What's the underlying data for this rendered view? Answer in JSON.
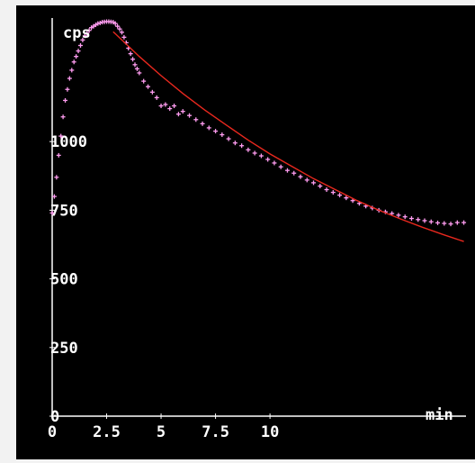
{
  "chart_data": {
    "type": "scatter",
    "title": "",
    "ylabel": "cps",
    "xlabel": "min",
    "xlim": [
      0,
      19
    ],
    "ylim": [
      0,
      1450
    ],
    "x_ticks": [
      "0",
      "2.5",
      "5",
      "7.5",
      "10"
    ],
    "x_tick_values": [
      0,
      2.5,
      5,
      7.5,
      10
    ],
    "y_ticks": [
      "0",
      "250",
      "500",
      "750",
      "1000"
    ],
    "y_tick_values": [
      0,
      250,
      500,
      750,
      1000
    ],
    "grid": false,
    "legend": "none",
    "series": [
      {
        "kind": "points",
        "color": "#ff9cf0",
        "x": [
          0.0,
          0.1,
          0.2,
          0.3,
          0.4,
          0.5,
          0.6,
          0.7,
          0.8,
          0.9,
          1.0,
          1.1,
          1.2,
          1.3,
          1.4,
          1.5,
          1.6,
          1.7,
          1.8,
          1.9,
          2.0,
          2.1,
          2.2,
          2.3,
          2.4,
          2.5,
          2.6,
          2.7,
          2.8,
          2.9,
          3.0,
          3.1,
          3.2,
          3.3,
          3.4,
          3.5,
          3.6,
          3.7,
          3.8,
          3.9,
          4.0,
          4.2,
          4.4,
          4.6,
          4.8,
          5.0,
          5.2,
          5.4,
          5.6,
          5.8,
          6.0,
          6.3,
          6.6,
          6.9,
          7.2,
          7.5,
          7.8,
          8.1,
          8.4,
          8.7,
          9.0,
          9.3,
          9.6,
          9.9,
          10.2,
          10.5,
          10.8,
          11.1,
          11.4,
          11.7,
          12.0,
          12.3,
          12.6,
          12.9,
          13.2,
          13.5,
          13.8,
          14.1,
          14.4,
          14.7,
          15.0,
          15.3,
          15.6,
          15.9,
          16.2,
          16.5,
          16.8,
          17.1,
          17.4,
          17.7,
          18.0,
          18.3,
          18.6,
          18.9
        ],
        "y": [
          740,
          800,
          870,
          950,
          1020,
          1090,
          1150,
          1190,
          1230,
          1260,
          1290,
          1310,
          1330,
          1350,
          1370,
          1385,
          1395,
          1405,
          1415,
          1420,
          1425,
          1430,
          1432,
          1435,
          1436,
          1437,
          1437,
          1436,
          1435,
          1430,
          1420,
          1410,
          1398,
          1380,
          1360,
          1340,
          1320,
          1300,
          1280,
          1265,
          1250,
          1220,
          1200,
          1180,
          1160,
          1130,
          1135,
          1120,
          1130,
          1100,
          1110,
          1095,
          1080,
          1065,
          1050,
          1038,
          1025,
          1010,
          995,
          985,
          970,
          958,
          948,
          935,
          922,
          908,
          895,
          885,
          872,
          860,
          850,
          838,
          825,
          815,
          805,
          795,
          785,
          775,
          765,
          758,
          750,
          744,
          738,
          732,
          726,
          720,
          716,
          712,
          708,
          704,
          702,
          700,
          705,
          705
        ]
      },
      {
        "kind": "fit",
        "color": "#e8281e",
        "x": [
          2.8,
          4,
          5,
          6,
          7,
          8,
          9,
          10,
          11,
          12,
          13,
          14,
          15,
          16,
          17,
          18,
          18.9
        ],
        "y": [
          1400,
          1310,
          1240,
          1175,
          1115,
          1060,
          1005,
          955,
          910,
          865,
          825,
          785,
          750,
          718,
          688,
          660,
          636
        ]
      }
    ]
  }
}
